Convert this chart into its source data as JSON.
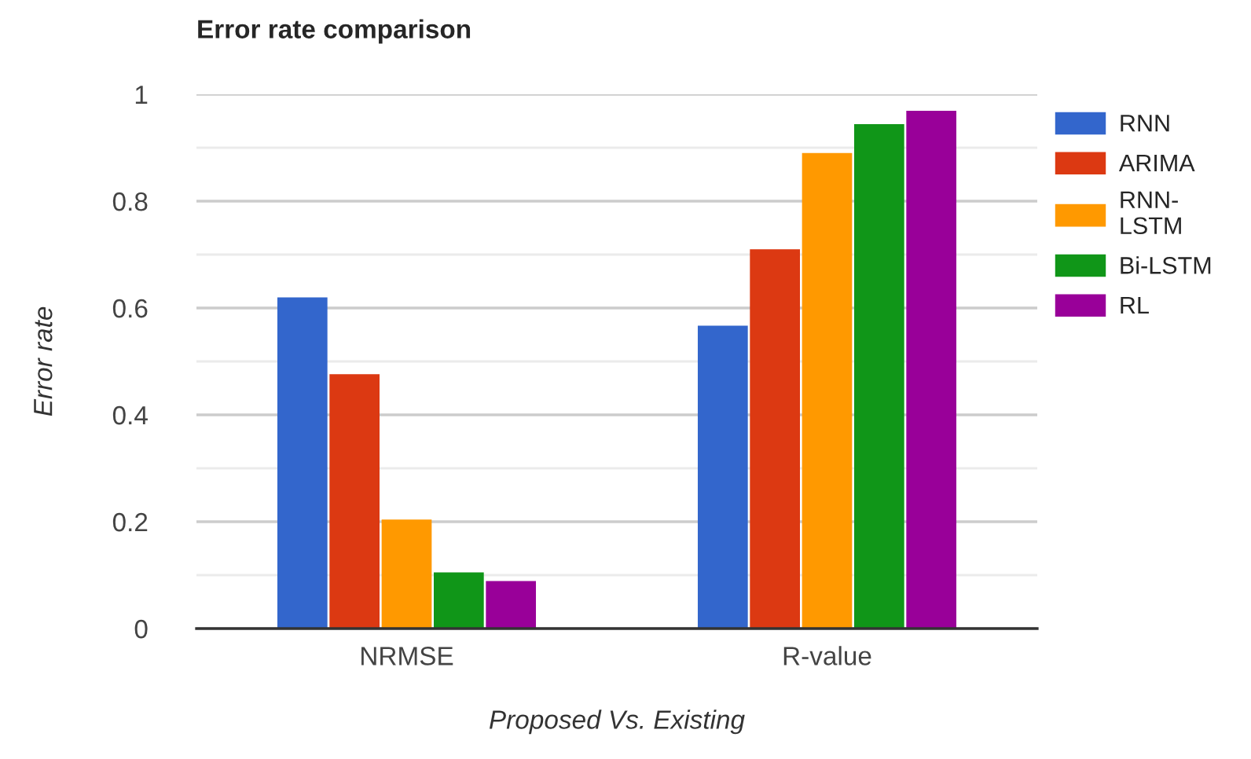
{
  "chart_data": {
    "type": "bar",
    "title": "Error rate comparison",
    "xlabel": "Proposed Vs. Existing",
    "ylabel": "Error rate",
    "categories": [
      "NRMSE",
      "R-value"
    ],
    "series": [
      {
        "name": "RNN",
        "color": "#3366cc",
        "values": [
          0.62,
          0.567
        ]
      },
      {
        "name": "ARIMA",
        "color": "#dc3912",
        "values": [
          0.476,
          0.71
        ]
      },
      {
        "name": "RNN-LSTM",
        "color": "#ff9900",
        "values": [
          0.204,
          0.89
        ]
      },
      {
        "name": "Bi-LSTM",
        "color": "#109618",
        "values": [
          0.105,
          0.944
        ]
      },
      {
        "name": "RL",
        "color": "#990099",
        "values": [
          0.089,
          0.969
        ]
      }
    ],
    "ylim": [
      0,
      1
    ],
    "yticks": [
      0,
      {
        "value": 0.1,
        "label": null
      },
      0.2,
      {
        "value": 0.3,
        "label": null
      },
      0.4,
      {
        "value": 0.5,
        "label": null
      },
      0.6,
      {
        "value": 0.7,
        "label": null
      },
      0.8,
      {
        "value": 0.9,
        "label": null
      },
      1
    ],
    "grid": "y",
    "legend": "top right"
  }
}
